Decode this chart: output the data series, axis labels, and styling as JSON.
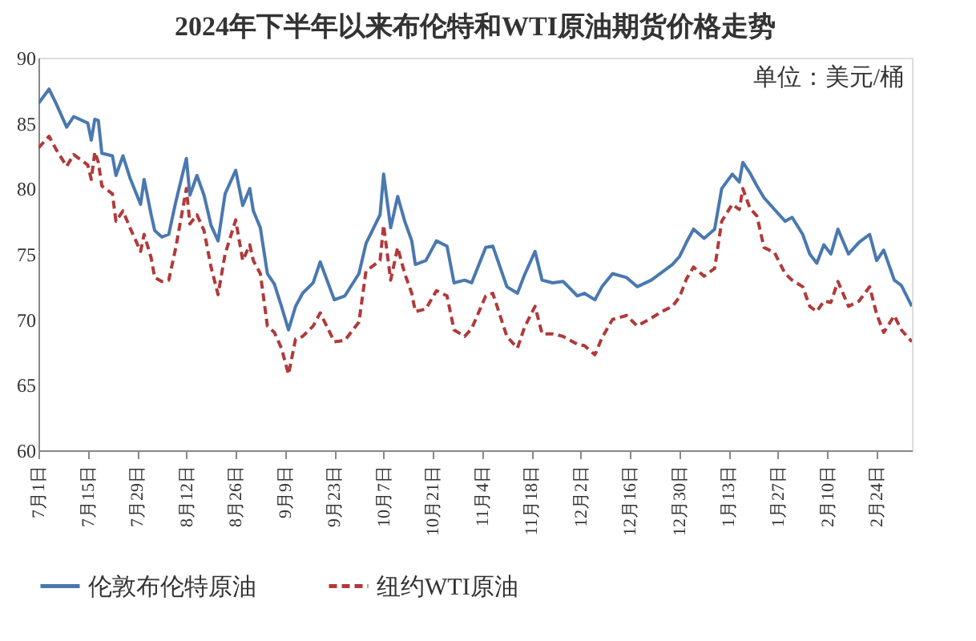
{
  "chart_data": {
    "type": "line",
    "title": "2024年下半年以来布伦特和WTI原油期货价格走势",
    "annotations": [
      "单位：美元/桶"
    ],
    "x": [
      "2024-07-01",
      "2024-07-04",
      "2024-07-06",
      "2024-07-09",
      "2024-07-11",
      "2024-07-15",
      "2024-07-16",
      "2024-07-17",
      "2024-07-18",
      "2024-07-19",
      "2024-07-22",
      "2024-07-23",
      "2024-07-25",
      "2024-07-27",
      "2024-07-30",
      "2024-07-31",
      "2024-08-02",
      "2024-08-03",
      "2024-08-05",
      "2024-08-07",
      "2024-08-09",
      "2024-08-12",
      "2024-08-13",
      "2024-08-15",
      "2024-08-17",
      "2024-08-19",
      "2024-08-21",
      "2024-08-23",
      "2024-08-26",
      "2024-08-28",
      "2024-08-30",
      "2024-08-31",
      "2024-09-02",
      "2024-09-04",
      "2024-09-06",
      "2024-09-08",
      "2024-09-10",
      "2024-09-12",
      "2024-09-14",
      "2024-09-17",
      "2024-09-19",
      "2024-09-23",
      "2024-09-26",
      "2024-09-30",
      "2024-10-02",
      "2024-10-06",
      "2024-10-07",
      "2024-10-09",
      "2024-10-11",
      "2024-10-13",
      "2024-10-15",
      "2024-10-16",
      "2024-10-19",
      "2024-10-22",
      "2024-10-25",
      "2024-10-27",
      "2024-10-30",
      "2024-11-01",
      "2024-11-05",
      "2024-11-07",
      "2024-11-11",
      "2024-11-14",
      "2024-11-16",
      "2024-11-19",
      "2024-11-21",
      "2024-11-24",
      "2024-11-27",
      "2024-12-01",
      "2024-12-03",
      "2024-12-06",
      "2024-12-08",
      "2024-12-11",
      "2024-12-15",
      "2024-12-18",
      "2024-12-22",
      "2024-12-25",
      "2024-12-28",
      "2024-12-30",
      "2025-01-01",
      "2025-01-03",
      "2025-01-06",
      "2025-01-09",
      "2025-01-11",
      "2025-01-14",
      "2025-01-16",
      "2025-01-17",
      "2025-01-19",
      "2025-01-21",
      "2025-01-23",
      "2025-01-26",
      "2025-01-29",
      "2025-01-31",
      "2025-02-03",
      "2025-02-05",
      "2025-02-07",
      "2025-02-09",
      "2025-02-11",
      "2025-02-13",
      "2025-02-16",
      "2025-02-19",
      "2025-02-22",
      "2025-02-24",
      "2025-02-26",
      "2025-03-01",
      "2025-03-03",
      "2025-03-06"
    ],
    "series": [
      {
        "name": "伦敦布伦特原油",
        "color": "#4a78b0",
        "line_style": "solid",
        "values": [
          86.5,
          87.6,
          86.5,
          84.7,
          85.5,
          85.0,
          83.7,
          85.3,
          85.2,
          82.7,
          82.5,
          81.0,
          82.5,
          80.8,
          78.8,
          80.7,
          78.0,
          76.8,
          76.3,
          76.5,
          79.0,
          82.3,
          79.5,
          81.0,
          79.5,
          77.2,
          76.0,
          79.6,
          81.4,
          78.7,
          80.0,
          78.3,
          77.0,
          73.5,
          72.7,
          71.0,
          69.2,
          71.0,
          72.0,
          72.8,
          74.4,
          71.5,
          71.8,
          73.5,
          75.8,
          78.0,
          81.1,
          77.0,
          79.4,
          77.5,
          76.0,
          74.2,
          74.5,
          76.0,
          75.6,
          72.8,
          73.0,
          72.8,
          75.5,
          75.6,
          72.5,
          72.0,
          73.4,
          75.2,
          73.0,
          72.8,
          72.9,
          71.8,
          72.0,
          71.5,
          72.5,
          73.5,
          73.2,
          72.5,
          73.0,
          73.6,
          74.2,
          74.8,
          75.9,
          76.9,
          76.2,
          76.9,
          80.0,
          81.1,
          80.5,
          82.0,
          81.2,
          80.2,
          79.3,
          78.4,
          77.5,
          77.8,
          76.5,
          75.0,
          74.3,
          75.7,
          75.0,
          76.9,
          75.0,
          75.9,
          76.5,
          74.5,
          75.3,
          73.0,
          72.6,
          71.0
        ]
      },
      {
        "name": "纽约WTI原油",
        "color": "#b03a3a",
        "line_style": "dashed",
        "values": [
          83.1,
          84.0,
          83.0,
          81.7,
          82.6,
          81.8,
          80.7,
          82.8,
          82.0,
          80.2,
          79.6,
          77.5,
          78.3,
          77.0,
          75.2,
          76.5,
          74.7,
          73.2,
          72.9,
          73.0,
          75.5,
          80.0,
          77.3,
          78.0,
          76.8,
          74.0,
          71.9,
          75.0,
          77.6,
          74.5,
          75.7,
          74.5,
          73.5,
          69.5,
          69.0,
          67.8,
          65.8,
          68.5,
          68.7,
          69.5,
          70.5,
          68.3,
          68.4,
          69.8,
          73.7,
          74.5,
          77.2,
          73.0,
          75.5,
          73.5,
          72.0,
          70.6,
          70.8,
          72.2,
          71.8,
          69.2,
          68.7,
          69.3,
          71.8,
          72.0,
          68.7,
          67.8,
          69.4,
          71.0,
          68.9,
          68.9,
          68.7,
          68.1,
          68.0,
          67.3,
          68.6,
          70.0,
          70.3,
          69.5,
          70.1,
          70.6,
          71.0,
          71.7,
          73.1,
          74.0,
          73.3,
          73.9,
          77.5,
          78.8,
          78.4,
          80.0,
          78.5,
          77.9,
          75.5,
          75.1,
          73.5,
          73.0,
          72.5,
          71.0,
          70.6,
          71.4,
          71.3,
          72.9,
          71.0,
          71.4,
          72.5,
          70.4,
          69.0,
          70.3,
          69.2,
          68.3
        ]
      }
    ],
    "xlim": [
      "2024-07-01",
      "2025-03-06"
    ],
    "xticks": [
      {
        "value": "2024-07-01",
        "label": "7月1日"
      },
      {
        "value": "2024-07-15",
        "label": "7月15日"
      },
      {
        "value": "2024-07-29",
        "label": "7月29日"
      },
      {
        "value": "2024-08-12",
        "label": "8月12日"
      },
      {
        "value": "2024-08-26",
        "label": "8月26日"
      },
      {
        "value": "2024-09-09",
        "label": "9月9日"
      },
      {
        "value": "2024-09-23",
        "label": "9月23日"
      },
      {
        "value": "2024-10-07",
        "label": "10月7日"
      },
      {
        "value": "2024-10-21",
        "label": "10月21日"
      },
      {
        "value": "2024-11-04",
        "label": "11月4日"
      },
      {
        "value": "2024-11-18",
        "label": "11月18日"
      },
      {
        "value": "2024-12-02",
        "label": "12月2日"
      },
      {
        "value": "2024-12-16",
        "label": "12月16日"
      },
      {
        "value": "2024-12-30",
        "label": "12月30日"
      },
      {
        "value": "2025-01-13",
        "label": "1月13日"
      },
      {
        "value": "2025-01-27",
        "label": "1月27日"
      },
      {
        "value": "2025-02-10",
        "label": "2月10日"
      },
      {
        "value": "2025-02-24",
        "label": "2月24日"
      }
    ],
    "ylim": [
      60,
      90
    ],
    "yticks": [
      60,
      65,
      70,
      75,
      80,
      85,
      90
    ],
    "grid": false,
    "legend": "bottom",
    "marker": "none"
  }
}
